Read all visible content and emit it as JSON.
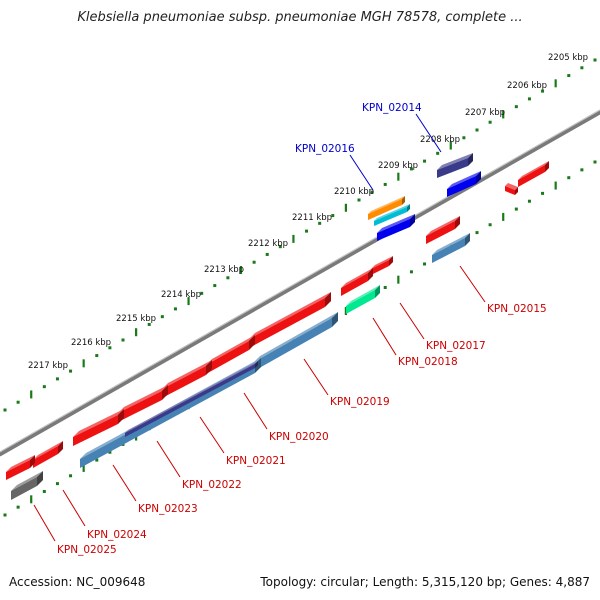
{
  "title": "Klebsiella pneumoniae subsp. pneumoniae MGH 78578, complete ...",
  "footer": {
    "accession": "Accession: NC_009648",
    "stats": "Topology: circular; Length: 5,315,120 bp; Genes: 4,887"
  },
  "ruler": [
    "2205 kbp",
    "2206 kbp",
    "2207 kbp",
    "2208 kbp",
    "2209 kbp",
    "2210 kbp",
    "2211 kbp",
    "2212 kbp",
    "2213 kbp",
    "2214 kbp",
    "2215 kbp",
    "2216 kbp",
    "2217 kbp"
  ],
  "genes": [
    {
      "name": "KPN_02014",
      "strand": "upper"
    },
    {
      "name": "KPN_02016",
      "strand": "upper"
    },
    {
      "name": "KPN_02015",
      "strand": "lower"
    },
    {
      "name": "KPN_02017",
      "strand": "lower"
    },
    {
      "name": "KPN_02018",
      "strand": "lower"
    },
    {
      "name": "KPN_02019",
      "strand": "lower"
    },
    {
      "name": "KPN_02020",
      "strand": "lower"
    },
    {
      "name": "KPN_02021",
      "strand": "lower"
    },
    {
      "name": "KPN_02022",
      "strand": "lower"
    },
    {
      "name": "KPN_02023",
      "strand": "lower"
    },
    {
      "name": "KPN_02024",
      "strand": "lower"
    },
    {
      "name": "KPN_02025",
      "strand": "lower"
    }
  ],
  "colors": {
    "feature_red": "#ee1111",
    "feature_blue": "#0000ee",
    "feature_steel": "#4682b4",
    "feature_navy": "#3a3a8a",
    "feature_orange": "#ff8c00",
    "feature_cyan": "#00bcd4",
    "feature_green": "#00e890",
    "feature_gray": "#666666",
    "ruler_green": "#1a7a1a",
    "upper_label": "#0000cc",
    "lower_label": "#cc0000"
  }
}
